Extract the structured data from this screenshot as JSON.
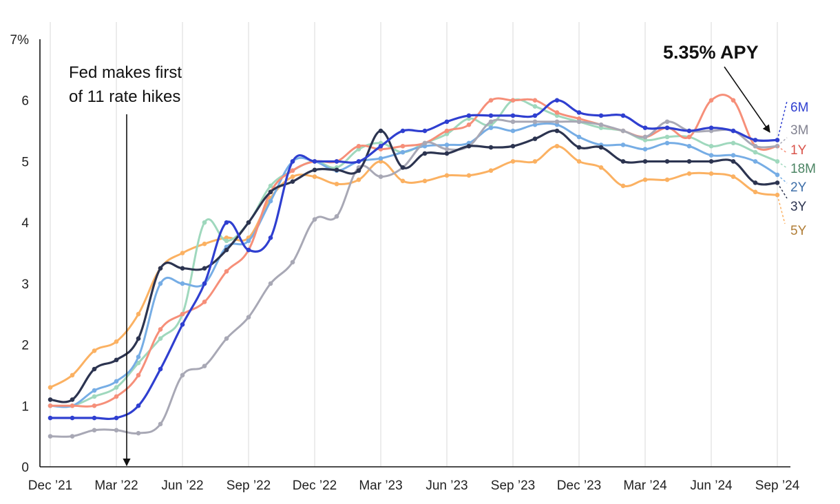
{
  "chart_data": {
    "type": "line",
    "title": "",
    "xlabel": "",
    "ylabel": "",
    "ylim": [
      0,
      7
    ],
    "yticks": [
      0,
      1,
      2,
      3,
      4,
      5,
      6,
      7
    ],
    "ytick_labels": [
      "0",
      "1",
      "2",
      "3",
      "4",
      "5",
      "6",
      "7%"
    ],
    "xlim": [
      0,
      33
    ],
    "x_ticks": [
      0,
      3,
      6,
      9,
      12,
      15,
      18,
      21,
      24,
      27,
      30,
      33
    ],
    "x_tick_labels": [
      "Dec ’21",
      "Mar ’22",
      "Jun ’22",
      "Sep ’22",
      "Dec ’22",
      "Mar ’23",
      "Jun ’23",
      "Sep ’23",
      "Dec ’23",
      "Mar ’24",
      "Jun ’24",
      "Sep ’24"
    ],
    "grid": "vertical",
    "legend": "right-end labels",
    "annotations": [
      {
        "text_lines": [
          "Fed makes first",
          "of 11 rate hikes"
        ],
        "x": 3.5,
        "points_to_y": 0
      },
      {
        "text": "5.35% APY",
        "x": 31.3,
        "points_to_x": 33,
        "points_to_y": 5.35
      }
    ],
    "series": [
      {
        "name": "5Y",
        "color": "#fbb162",
        "label_color": "#b07d36",
        "values": [
          1.3,
          1.5,
          1.9,
          2.05,
          2.5,
          3.25,
          3.5,
          3.65,
          3.75,
          3.75,
          4.4,
          4.75,
          4.75,
          4.63,
          4.7,
          5.0,
          4.68,
          4.68,
          4.77,
          4.77,
          4.85,
          5.0,
          5.0,
          5.25,
          5.0,
          4.9,
          4.6,
          4.7,
          4.7,
          4.8,
          4.8,
          4.75,
          4.5,
          4.45
        ]
      },
      {
        "name": "18M",
        "color": "#9fd8bd",
        "label_color": "#4b8463",
        "values": [
          1.0,
          1.0,
          1.15,
          1.3,
          1.7,
          2.1,
          2.5,
          4.0,
          3.7,
          4.0,
          4.6,
          4.85,
          5.0,
          4.9,
          5.2,
          5.3,
          5.15,
          5.3,
          5.45,
          5.7,
          5.6,
          6.0,
          5.9,
          5.75,
          5.65,
          5.55,
          5.5,
          5.35,
          5.4,
          5.4,
          5.25,
          5.3,
          5.15,
          5.0
        ]
      },
      {
        "name": "2Y",
        "color": "#76ade5",
        "label_color": "#3d6ea8",
        "values": [
          1.0,
          1.0,
          1.25,
          1.4,
          1.8,
          3.0,
          3.0,
          3.0,
          3.6,
          3.7,
          4.35,
          5.0,
          5.0,
          4.85,
          5.0,
          5.05,
          5.15,
          5.25,
          5.27,
          5.3,
          5.55,
          5.5,
          5.6,
          5.6,
          5.4,
          5.27,
          5.27,
          5.2,
          5.3,
          5.25,
          5.1,
          5.1,
          5.0,
          4.78
        ]
      },
      {
        "name": "1Y",
        "color": "#f68f79",
        "label_color": "#d9534a",
        "values": [
          1.0,
          1.0,
          1.0,
          1.15,
          1.5,
          2.25,
          2.5,
          2.7,
          3.2,
          3.55,
          4.5,
          4.85,
          5.0,
          5.0,
          5.25,
          5.2,
          5.25,
          5.3,
          5.5,
          5.6,
          6.0,
          6.0,
          6.0,
          5.8,
          5.7,
          5.6,
          5.5,
          5.4,
          5.55,
          5.4,
          6.0,
          6.0,
          5.25,
          5.25
        ]
      },
      {
        "name": "3M",
        "color": "#a8a8b5",
        "label_color": "#828290",
        "values": [
          0.5,
          0.5,
          0.6,
          0.6,
          0.55,
          0.7,
          1.5,
          1.65,
          2.1,
          2.45,
          3.0,
          3.35,
          4.05,
          4.1,
          4.9,
          4.75,
          4.9,
          5.3,
          5.2,
          5.25,
          5.65,
          5.65,
          5.65,
          5.65,
          5.65,
          5.6,
          5.5,
          5.4,
          5.65,
          5.5,
          5.5,
          5.5,
          5.25,
          5.25
        ]
      },
      {
        "name": "3Y",
        "color": "#2c3450",
        "label_color": "#2c3450",
        "values": [
          1.1,
          1.1,
          1.6,
          1.75,
          2.1,
          3.25,
          3.25,
          3.25,
          3.55,
          4.0,
          4.5,
          4.67,
          4.86,
          4.86,
          4.85,
          5.5,
          4.9,
          5.13,
          5.13,
          5.25,
          5.23,
          5.25,
          5.37,
          5.5,
          5.23,
          5.23,
          5.0,
          5.0,
          5.0,
          5.0,
          5.0,
          5.0,
          4.65,
          4.65
        ]
      },
      {
        "name": "6M",
        "color": "#2f3fd0",
        "label_color": "#2f3fd0",
        "values": [
          0.8,
          0.8,
          0.8,
          0.8,
          1.0,
          1.6,
          2.33,
          3.0,
          4.0,
          3.55,
          3.75,
          5.0,
          5.0,
          5.0,
          5.0,
          5.25,
          5.5,
          5.5,
          5.65,
          5.75,
          5.75,
          5.75,
          5.75,
          6.0,
          5.8,
          5.75,
          5.75,
          5.55,
          5.55,
          5.5,
          5.55,
          5.5,
          5.35,
          5.35
        ]
      }
    ]
  }
}
